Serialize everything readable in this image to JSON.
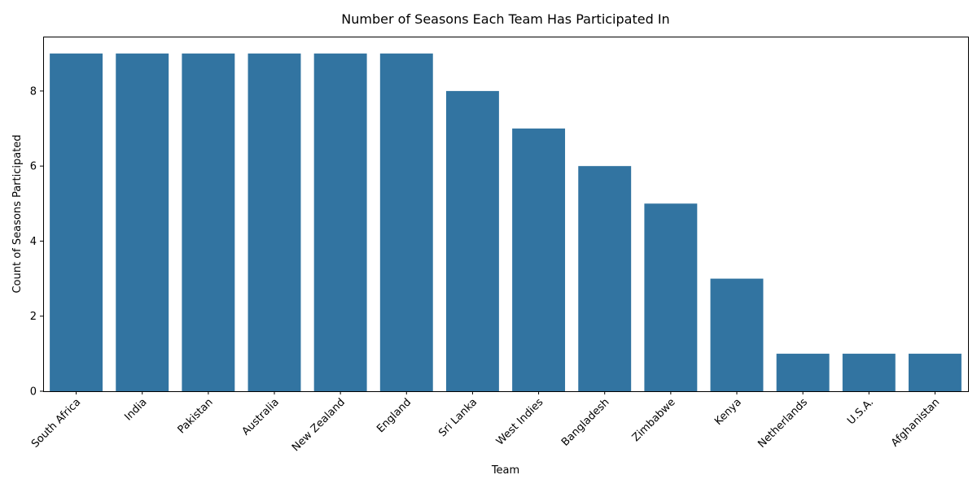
{
  "chart_data": {
    "type": "bar",
    "title": "Number of Seasons Each Team Has Participated In",
    "xlabel": "Team",
    "ylabel": "Count of Seasons Participated",
    "categories": [
      "South Africa",
      "India",
      "Pakistan",
      "Australia",
      "New Zealand",
      "England",
      "Sri Lanka",
      "West Indies",
      "Bangladesh",
      "Zimbabwe",
      "Kenya",
      "Netherlands",
      "U.S.A.",
      "Afghanistan"
    ],
    "values": [
      9,
      9,
      9,
      9,
      9,
      9,
      8,
      7,
      6,
      5,
      3,
      1,
      1,
      1
    ],
    "ylim": [
      0,
      9.45
    ],
    "yticks": [
      0,
      2,
      4,
      6,
      8
    ],
    "bar_color": "#3274a1",
    "grid": false
  }
}
